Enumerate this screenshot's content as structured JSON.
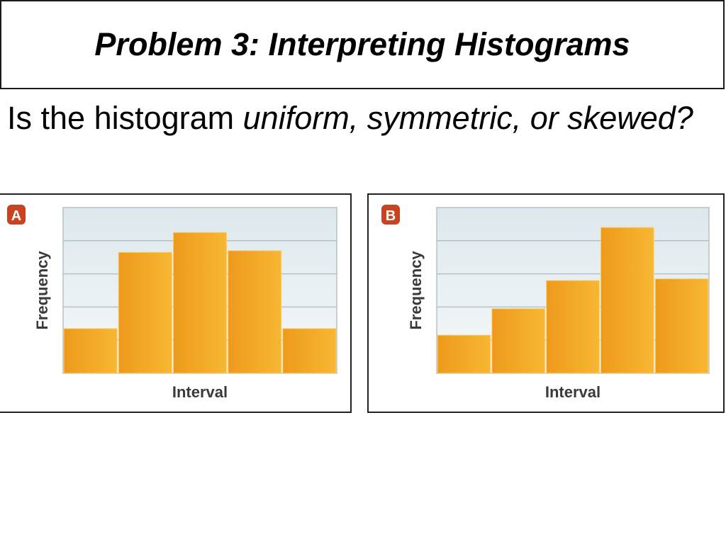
{
  "slide": {
    "title": "Problem 3: Interpreting Histograms",
    "question_prefix": "Is the histogram ",
    "question_emphasis": "uniform, symmetric, or skewed?"
  },
  "colors": {
    "bar_light": "#f7b733",
    "bar_dark": "#ee9a1c",
    "plot_bg": "#eaf1f4",
    "grid": "#b5c1c6",
    "badge": "#c8431f"
  },
  "chart_data": [
    {
      "type": "bar",
      "badge": "A",
      "title": "",
      "xlabel": "Interval",
      "ylabel": "Frequency",
      "categories": [
        "",
        "",
        "",
        "",
        ""
      ],
      "values": [
        1.35,
        3.65,
        4.25,
        3.7,
        1.35
      ],
      "ylim": [
        0,
        5
      ],
      "grid": true
    },
    {
      "type": "bar",
      "badge": "B",
      "title": "",
      "xlabel": "Interval",
      "ylabel": "Frequency",
      "categories": [
        "",
        "",
        "",
        "",
        ""
      ],
      "values": [
        1.15,
        1.95,
        2.8,
        4.4,
        2.85
      ],
      "ylim": [
        0,
        5
      ],
      "grid": true
    }
  ]
}
